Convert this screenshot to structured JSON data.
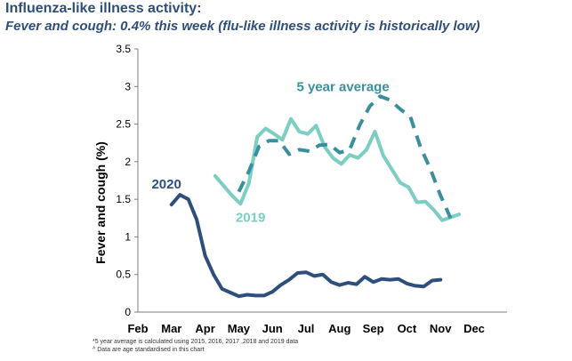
{
  "header": {
    "title": "Influenza-like illness activity:",
    "subtitle": "Fever and cough: 0.4% this week (flu-like illness activity is historically low)"
  },
  "footnotes": [
    "*5 year average is calculated using 2015, 2016, 2017 ,2018 and 2019 data",
    "^ Data are age standardised in this chart"
  ],
  "colors": {
    "series_2020": "#2e4f7c",
    "series_2019": "#7ccdc3",
    "series_5yr": "#3a8f9e",
    "axis": "#7f7f7f",
    "text": "#000000"
  },
  "chart_data": {
    "type": "line",
    "title": "",
    "xlabel": "",
    "ylabel": "Fever and cough (%)",
    "ylim": [
      0,
      3.5
    ],
    "yticks": [
      "0",
      "0.5",
      "1",
      "1.5",
      "2",
      "2.5",
      "3",
      "3.5"
    ],
    "ytick_values": [
      0,
      0.5,
      1,
      1.5,
      2,
      2.5,
      3,
      3.5
    ],
    "categories": [
      "Feb",
      "Mar",
      "Apr",
      "May",
      "Jun",
      "Jul",
      "Aug",
      "Sep",
      "Oct",
      "Nov",
      "Dec"
    ],
    "grid": false,
    "legend": "none",
    "series": [
      {
        "name": "2020",
        "style": "solid",
        "label_pos": [
          0.85,
          1.7
        ],
        "x": [
          1.0,
          1.25,
          1.5,
          1.75,
          2.0,
          2.25,
          2.5,
          2.75,
          3.0,
          3.25,
          3.5,
          3.75,
          4.0,
          4.25,
          4.5,
          4.75,
          5.0,
          5.25,
          5.5,
          5.75,
          6.0,
          6.25,
          6.5,
          6.75,
          7.0,
          7.25,
          7.5,
          7.75,
          8.0,
          8.25,
          8.5,
          8.75,
          9.0
        ],
        "y": [
          1.43,
          1.56,
          1.5,
          1.23,
          0.75,
          0.5,
          0.31,
          0.26,
          0.21,
          0.23,
          0.22,
          0.22,
          0.27,
          0.36,
          0.43,
          0.52,
          0.53,
          0.48,
          0.5,
          0.4,
          0.36,
          0.39,
          0.37,
          0.47,
          0.4,
          0.44,
          0.43,
          0.44,
          0.38,
          0.35,
          0.34,
          0.42,
          0.43
        ]
      },
      {
        "name": "2019",
        "style": "solid",
        "label_pos": [
          3.35,
          1.26
        ],
        "x": [
          2.3,
          2.55,
          2.8,
          3.05,
          3.3,
          3.55,
          3.8,
          4.05,
          4.3,
          4.55,
          4.8,
          5.05,
          5.3,
          5.55,
          5.8,
          6.05,
          6.3,
          6.55,
          6.8,
          7.05,
          7.3,
          7.55,
          7.8,
          8.05,
          8.3,
          8.55,
          8.8,
          9.05,
          9.3,
          9.55
        ],
        "y": [
          1.81,
          1.68,
          1.55,
          1.44,
          1.71,
          2.33,
          2.44,
          2.37,
          2.29,
          2.57,
          2.4,
          2.37,
          2.48,
          2.2,
          2.05,
          1.97,
          2.09,
          2.05,
          2.16,
          2.4,
          2.08,
          1.9,
          1.72,
          1.66,
          1.46,
          1.47,
          1.36,
          1.22,
          1.26,
          1.3
        ]
      },
      {
        "name": "5 year average",
        "style": "dashed",
        "label_pos": [
          6.1,
          3.0
        ],
        "x": [
          3.0,
          3.3,
          3.6,
          3.9,
          4.2,
          4.5,
          4.8,
          5.1,
          5.4,
          5.7,
          6.0,
          6.3,
          6.6,
          6.9,
          7.2,
          7.5,
          7.8,
          8.1,
          8.4,
          8.7,
          9.0,
          9.3
        ],
        "y": [
          1.6,
          1.87,
          2.2,
          2.28,
          2.28,
          2.1,
          2.16,
          2.14,
          2.22,
          2.23,
          2.12,
          2.16,
          2.49,
          2.74,
          2.87,
          2.82,
          2.7,
          2.6,
          2.2,
          1.9,
          1.55,
          1.25
        ]
      }
    ]
  }
}
